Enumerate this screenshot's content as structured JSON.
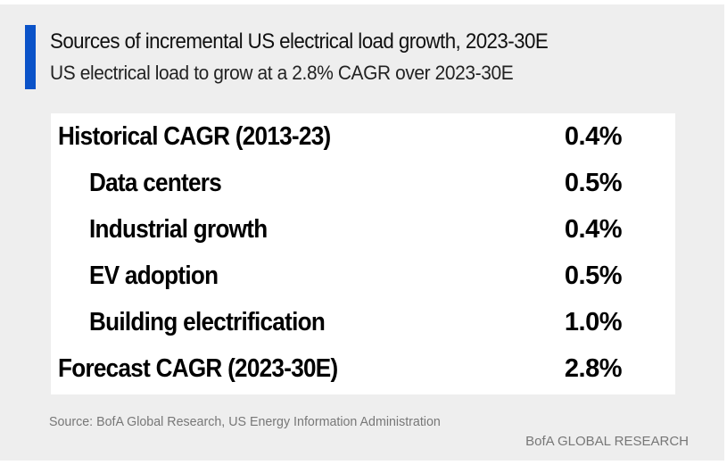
{
  "header": {
    "title": "Sources of incremental US electrical load growth, 2023-30E",
    "subtitle": "US electrical load to grow at a 2.8% CAGR over 2023-30E",
    "accent_color": "#0a52c8"
  },
  "table": {
    "rows": [
      {
        "label": "Historical CAGR (2013-23)",
        "value": "0.4%"
      },
      {
        "label": "Data centers",
        "value": "0.5%"
      },
      {
        "label": "Industrial growth",
        "value": "0.4%"
      },
      {
        "label": "EV adoption",
        "value": "0.5%"
      },
      {
        "label": "Building electrification",
        "value": "1.0%"
      },
      {
        "label": "Forecast CAGR (2023-30E)",
        "value": "2.8%"
      }
    ]
  },
  "footer": {
    "source": "Source:  BofA Global Research, US Energy Information Administration",
    "brand": "BofA GLOBAL RESEARCH"
  }
}
